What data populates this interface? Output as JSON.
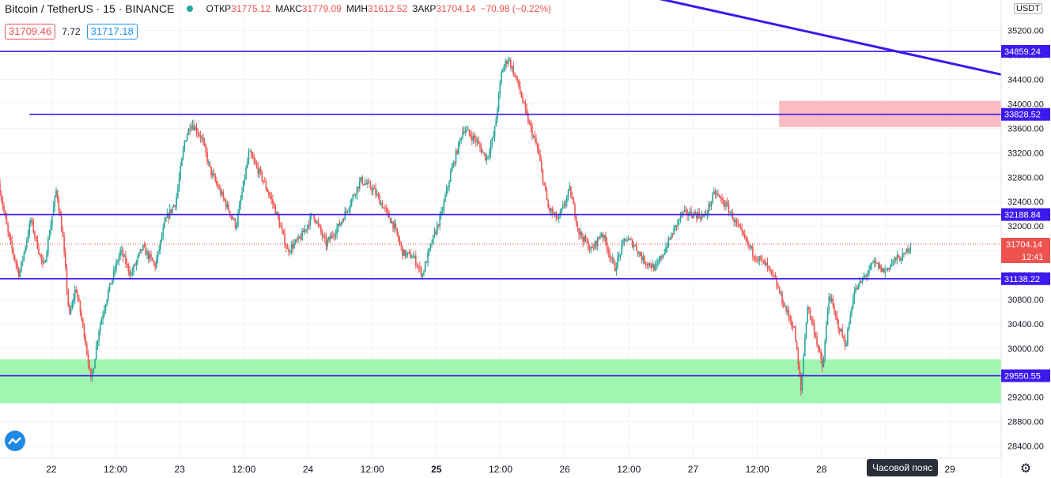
{
  "header": {
    "symbol": "Bitcoin / TetherUS · 15 · BINANCE",
    "open_label": "ОТКР",
    "open": "31775.12",
    "high_label": "МАКС",
    "high": "31779.09",
    "low_label": "МИН",
    "low": "31612.52",
    "close_label": "ЗАКР",
    "close": "31704.14",
    "change": "−70.98 (−0.22%)"
  },
  "quote": {
    "bid": "31709.46",
    "spread": "7.72",
    "ask": "31717.18"
  },
  "currency": "USDT",
  "timezone_label": "Часовой пояс",
  "colors": {
    "up": "#26a69a",
    "down": "#ef5350",
    "level": "#3d19f0",
    "support_zone": "#96f5a8",
    "resistance_zone": "#f9b4bb"
  },
  "chart_data": {
    "type": "candlestick",
    "title": "Bitcoin / TetherUS · 15 · BINANCE",
    "xlabel": "",
    "ylabel": "",
    "ylim": [
      28200,
      35700
    ],
    "y_ticks": [
      28400,
      28800,
      29200,
      29600,
      30000,
      30400,
      30800,
      31200,
      31600,
      32000,
      32400,
      32800,
      33200,
      33600,
      34000,
      34400,
      34800,
      35200
    ],
    "x_tick_labels": [
      "22",
      "12:00",
      "23",
      "12:00",
      "24",
      "12:00",
      "25",
      "12:00",
      "26",
      "12:00",
      "27",
      "12:00",
      "28",
      "12:00",
      "29"
    ],
    "x_tick_days": [
      22,
      22.5,
      23,
      23.5,
      24,
      24.5,
      25,
      25.5,
      26,
      26.5,
      27,
      27.5,
      28,
      28.5,
      29
    ],
    "xlim": [
      21.6,
      29.4
    ],
    "last_bar_day": 28.703,
    "price_path": [
      [
        21.6,
        32700
      ],
      [
        21.68,
        31800
      ],
      [
        21.76,
        31200
      ],
      [
        21.85,
        32100
      ],
      [
        21.95,
        31300
      ],
      [
        22.05,
        32600
      ],
      [
        22.1,
        31800
      ],
      [
        22.15,
        30500
      ],
      [
        22.2,
        31000
      ],
      [
        22.27,
        30200
      ],
      [
        22.32,
        29450
      ],
      [
        22.38,
        30300
      ],
      [
        22.45,
        30900
      ],
      [
        22.55,
        31600
      ],
      [
        22.63,
        31200
      ],
      [
        22.72,
        31650
      ],
      [
        22.82,
        31350
      ],
      [
        22.9,
        32100
      ],
      [
        22.98,
        32400
      ],
      [
        23.05,
        33400
      ],
      [
        23.1,
        33700
      ],
      [
        23.18,
        33450
      ],
      [
        23.25,
        32900
      ],
      [
        23.35,
        32450
      ],
      [
        23.45,
        32000
      ],
      [
        23.55,
        33200
      ],
      [
        23.65,
        32800
      ],
      [
        23.75,
        32300
      ],
      [
        23.85,
        31600
      ],
      [
        23.95,
        31800
      ],
      [
        24.05,
        32200
      ],
      [
        24.15,
        31700
      ],
      [
        24.25,
        32000
      ],
      [
        24.32,
        32300
      ],
      [
        24.42,
        32750
      ],
      [
        24.52,
        32600
      ],
      [
        24.6,
        32300
      ],
      [
        24.68,
        32000
      ],
      [
        24.75,
        31550
      ],
      [
        24.83,
        31500
      ],
      [
        24.9,
        31200
      ],
      [
        24.97,
        31700
      ],
      [
        25.05,
        32200
      ],
      [
        25.12,
        32850
      ],
      [
        25.22,
        33600
      ],
      [
        25.32,
        33400
      ],
      [
        25.4,
        33100
      ],
      [
        25.46,
        33500
      ],
      [
        25.52,
        34550
      ],
      [
        25.57,
        34750
      ],
      [
        25.65,
        34300
      ],
      [
        25.72,
        33750
      ],
      [
        25.8,
        33250
      ],
      [
        25.88,
        32300
      ],
      [
        25.96,
        32100
      ],
      [
        26.05,
        32600
      ],
      [
        26.12,
        31900
      ],
      [
        26.22,
        31600
      ],
      [
        26.3,
        31900
      ],
      [
        26.4,
        31300
      ],
      [
        26.48,
        31800
      ],
      [
        26.55,
        31700
      ],
      [
        26.62,
        31450
      ],
      [
        26.72,
        31300
      ],
      [
        26.82,
        31750
      ],
      [
        26.92,
        32200
      ],
      [
        27.02,
        32200
      ],
      [
        27.1,
        32150
      ],
      [
        27.18,
        32550
      ],
      [
        27.28,
        32300
      ],
      [
        27.38,
        31900
      ],
      [
        27.48,
        31550
      ],
      [
        27.58,
        31350
      ],
      [
        27.65,
        31100
      ],
      [
        27.72,
        30700
      ],
      [
        27.8,
        30300
      ],
      [
        27.85,
        29300
      ],
      [
        27.9,
        30700
      ],
      [
        27.96,
        30250
      ],
      [
        28.02,
        29650
      ],
      [
        28.07,
        30900
      ],
      [
        28.12,
        30500
      ],
      [
        28.2,
        30050
      ],
      [
        28.26,
        30900
      ],
      [
        28.34,
        31150
      ],
      [
        28.42,
        31400
      ],
      [
        28.5,
        31250
      ],
      [
        28.58,
        31450
      ],
      [
        28.65,
        31500
      ],
      [
        28.703,
        31704
      ]
    ],
    "levels": [
      34859.24,
      33828.52,
      32188.84,
      31138.22,
      29550.55
    ],
    "level_labels": [
      "34859.24",
      "33828.52",
      "32188.84",
      "31138.22",
      "29550.55"
    ],
    "level_33828_start_day": 21.83,
    "last_price": 31704.14,
    "last_price_label": "31704.14",
    "bar_countdown": "12:41",
    "zones": [
      {
        "name": "support",
        "from": 29100,
        "to": 29820,
        "start_day": 21.6,
        "end_day": 29.4
      },
      {
        "name": "resistance",
        "from": 33620,
        "to": 34050,
        "start_day": 27.67,
        "end_day": 29.4
      }
    ],
    "trendline": {
      "from": [
        26.35,
        35900
      ],
      "to": [
        29.4,
        34480
      ]
    }
  }
}
